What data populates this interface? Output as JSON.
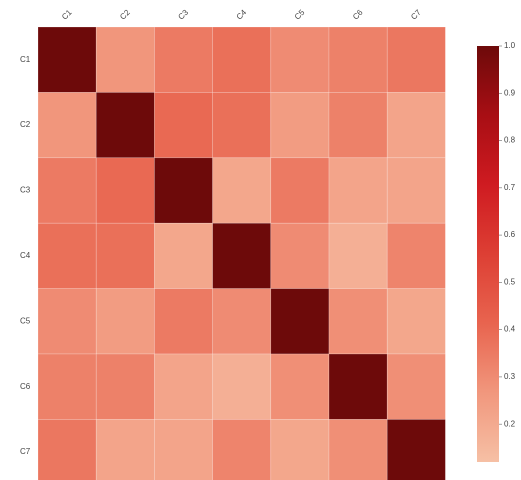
{
  "chart_data": {
    "type": "heatmap",
    "title": "",
    "xlabel": "",
    "ylabel": "",
    "x_categories": [
      "C1",
      "C2",
      "C3",
      "C4",
      "C5",
      "C6",
      "C7"
    ],
    "y_categories": [
      "C1",
      "C2",
      "C3",
      "C4",
      "C5",
      "C6",
      "C7"
    ],
    "values": [
      [
        1.0,
        0.27,
        0.35,
        0.38,
        0.3,
        0.33,
        0.36
      ],
      [
        0.27,
        1.0,
        0.4,
        0.38,
        0.25,
        0.33,
        0.22
      ],
      [
        0.35,
        0.4,
        1.0,
        0.21,
        0.35,
        0.22,
        0.22
      ],
      [
        0.38,
        0.38,
        0.21,
        1.0,
        0.3,
        0.18,
        0.32
      ],
      [
        0.3,
        0.25,
        0.35,
        0.3,
        1.0,
        0.29,
        0.21
      ],
      [
        0.33,
        0.33,
        0.22,
        0.18,
        0.29,
        1.0,
        0.29
      ],
      [
        0.36,
        0.22,
        0.22,
        0.32,
        0.21,
        0.29,
        1.0
      ]
    ],
    "colorbar": {
      "min": 0.12,
      "max": 1.0,
      "ticks": [
        "1.0",
        "0.9",
        "0.8",
        "0.7",
        "0.6",
        "0.5",
        "0.4",
        "0.3",
        "0.2"
      ],
      "colors": [
        "#f6c0a5",
        "#f1977d",
        "#e8644f",
        "#dd3f34",
        "#cf1b21",
        "#a80e14",
        "#6d0a0a"
      ]
    },
    "grid": false
  }
}
